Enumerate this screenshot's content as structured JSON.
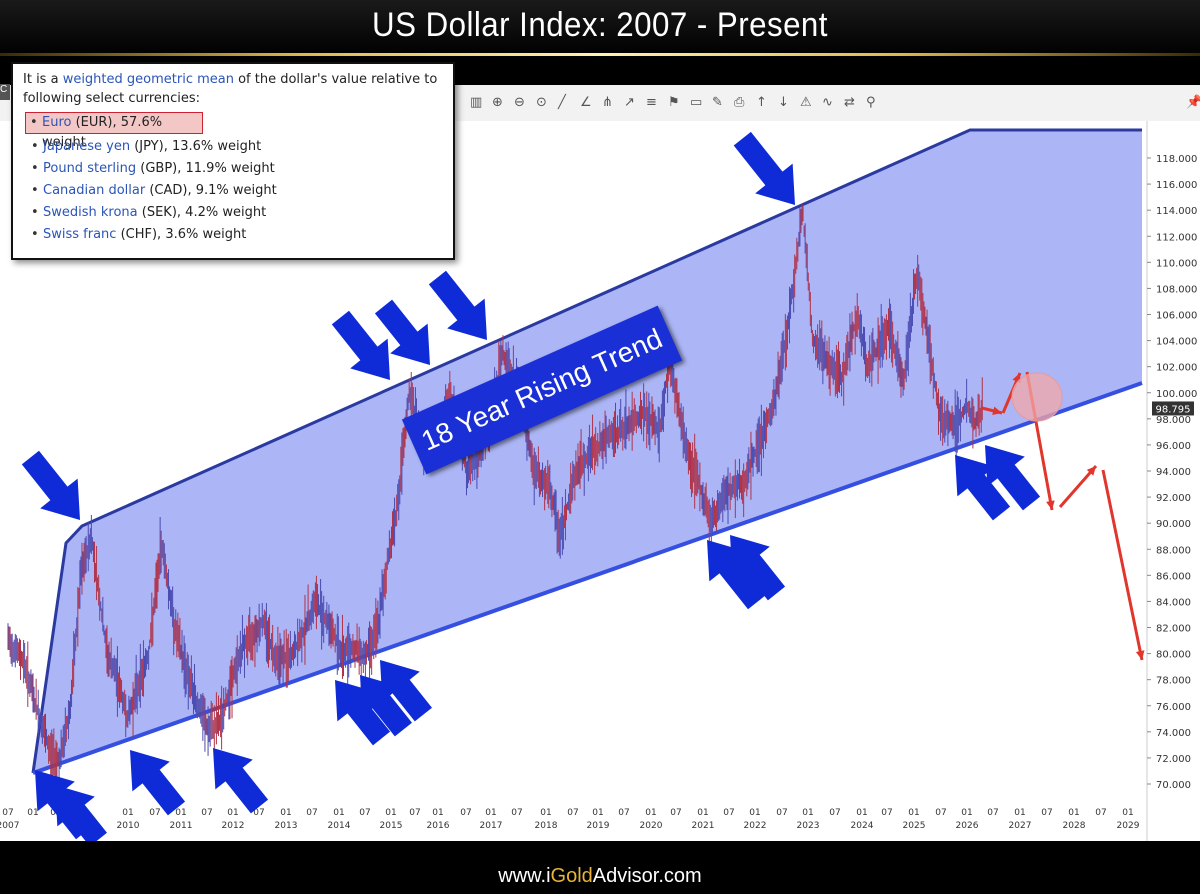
{
  "header": {
    "title": "US Dollar Index: 2007 - Present"
  },
  "info_box": {
    "intro_pre": "It is a ",
    "intro_link": "weighted geometric mean",
    "intro_post": " of the dollar's value relative to following select currencies:",
    "currencies": [
      {
        "name": "Euro",
        "rest": " (EUR), 57.6% weight",
        "highlight": true
      },
      {
        "name": "Japanese yen",
        "rest": " (JPY), 13.6% weight",
        "highlight": false
      },
      {
        "name": "Pound sterling",
        "rest": " (GBP), 11.9% weight",
        "highlight": false
      },
      {
        "name": "Canadian dollar",
        "rest": " (CAD), 9.1% weight",
        "highlight": false
      },
      {
        "name": "Swedish krona",
        "rest": " (SEK), 4.2% weight",
        "highlight": false
      },
      {
        "name": "Swiss franc",
        "rest": " (CHF), 3.6% weight",
        "highlight": false
      }
    ]
  },
  "trend_label": "18 Year Rising Trend",
  "price_marker": "98.795",
  "footer": {
    "url_pre": "www.i",
    "url_gold": "Gold",
    "url_post": "Advisor.com"
  },
  "toolbar": {
    "tab_letter": "C",
    "icons": [
      "bar-chart-icon",
      "zoom-in-icon",
      "zoom-out-icon",
      "zoom-reset-icon",
      "line-tool-icon",
      "trend-tool-icon",
      "fork-tool-icon",
      "arrow-tool-icon",
      "fib-tool-icon",
      "flag-tool-icon",
      "ruler-tool-icon",
      "eraser-tool-icon",
      "print-icon",
      "buy-icon",
      "sell-icon",
      "alert-icon",
      "indicator-icon",
      "compare-icon",
      "pin-icon"
    ]
  },
  "colors": {
    "channel_fill": "#a8b2f5",
    "channel_line": "#2a3aa0",
    "arrow_blue": "#0f2bd8",
    "arrow_red": "#e0362c",
    "label_box": "#1a2fd6",
    "candle_red": "#b0334a",
    "candle_blue": "#4a4ab0"
  },
  "chart_data": {
    "type": "line",
    "title": "US Dollar Index: 2007 - Present",
    "ylim": [
      69,
      120
    ],
    "y_ticks": [
      "70.000",
      "72.000",
      "74.000",
      "76.000",
      "78.000",
      "80.000",
      "82.000",
      "84.000",
      "86.000",
      "88.000",
      "90.000",
      "92.000",
      "94.000",
      "96.000",
      "98.000",
      "100.000",
      "102.000",
      "104.000",
      "106.000",
      "108.000",
      "110.000",
      "112.000",
      "114.000",
      "116.000",
      "118.000"
    ],
    "x_ticks": [
      {
        "top": "07",
        "bottom": "2007"
      },
      {
        "top": "01",
        "bottom": ""
      },
      {
        "top": "07",
        "bottom": ""
      },
      {
        "top": "01",
        "bottom": "2010"
      },
      {
        "top": "07",
        "bottom": ""
      },
      {
        "top": "01",
        "bottom": "2011"
      },
      {
        "top": "07",
        "bottom": ""
      },
      {
        "top": "01",
        "bottom": "2012"
      },
      {
        "top": "07",
        "bottom": ""
      },
      {
        "top": "01",
        "bottom": "2013"
      },
      {
        "top": "07",
        "bottom": ""
      },
      {
        "top": "01",
        "bottom": "2014"
      },
      {
        "top": "07",
        "bottom": ""
      },
      {
        "top": "01",
        "bottom": "2015"
      },
      {
        "top": "07",
        "bottom": ""
      },
      {
        "top": "01",
        "bottom": "2016"
      },
      {
        "top": "07",
        "bottom": ""
      },
      {
        "top": "01",
        "bottom": "2017"
      },
      {
        "top": "07",
        "bottom": ""
      },
      {
        "top": "01",
        "bottom": "2018"
      },
      {
        "top": "07",
        "bottom": ""
      },
      {
        "top": "01",
        "bottom": "2019"
      },
      {
        "top": "07",
        "bottom": ""
      },
      {
        "top": "01",
        "bottom": "2020"
      },
      {
        "top": "07",
        "bottom": ""
      },
      {
        "top": "01",
        "bottom": "2021"
      },
      {
        "top": "07",
        "bottom": ""
      },
      {
        "top": "01",
        "bottom": "2022"
      },
      {
        "top": "07",
        "bottom": ""
      },
      {
        "top": "01",
        "bottom": "2023"
      },
      {
        "top": "07",
        "bottom": ""
      },
      {
        "top": "01",
        "bottom": "2024"
      },
      {
        "top": "07",
        "bottom": ""
      },
      {
        "top": "01",
        "bottom": "2025"
      },
      {
        "top": "07",
        "bottom": ""
      },
      {
        "top": "01",
        "bottom": "2026"
      },
      {
        "top": "07",
        "bottom": ""
      },
      {
        "top": "01",
        "bottom": "2027"
      },
      {
        "top": "07",
        "bottom": ""
      },
      {
        "top": "01",
        "bottom": "2028"
      },
      {
        "top": "07",
        "bottom": ""
      },
      {
        "top": "01",
        "bottom": "2029"
      }
    ],
    "series": [
      {
        "values": [
          [
            2007.5,
            81
          ],
          [
            2007.8,
            79.5
          ],
          [
            2008.0,
            76.5
          ],
          [
            2008.3,
            72.5
          ],
          [
            2008.5,
            71.8
          ],
          [
            2008.7,
            76
          ],
          [
            2008.9,
            86
          ],
          [
            2009.1,
            89
          ],
          [
            2009.2,
            86
          ],
          [
            2009.4,
            80
          ],
          [
            2009.6,
            78
          ],
          [
            2009.8,
            75
          ],
          [
            2009.95,
            77
          ],
          [
            2010.2,
            80
          ],
          [
            2010.45,
            88.5
          ],
          [
            2010.7,
            82
          ],
          [
            2010.9,
            79
          ],
          [
            2011.1,
            76.5
          ],
          [
            2011.35,
            74
          ],
          [
            2011.6,
            75
          ],
          [
            2011.8,
            78
          ],
          [
            2012.0,
            80.5
          ],
          [
            2012.4,
            82.5
          ],
          [
            2012.6,
            80
          ],
          [
            2012.9,
            79.5
          ],
          [
            2013.1,
            81
          ],
          [
            2013.4,
            84
          ],
          [
            2013.7,
            82
          ],
          [
            2013.9,
            80
          ],
          [
            2014.1,
            80.5
          ],
          [
            2014.35,
            79.8
          ],
          [
            2014.6,
            82
          ],
          [
            2014.8,
            87.5
          ],
          [
            2015.0,
            92
          ],
          [
            2015.2,
            100
          ],
          [
            2015.5,
            95.5
          ],
          [
            2015.8,
            98
          ],
          [
            2016.0,
            99.5
          ],
          [
            2016.3,
            94
          ],
          [
            2016.5,
            95
          ],
          [
            2016.8,
            98.5
          ],
          [
            2017.0,
            103.2
          ],
          [
            2017.3,
            100
          ],
          [
            2017.6,
            94
          ],
          [
            2017.9,
            92.5
          ],
          [
            2018.1,
            89
          ],
          [
            2018.4,
            94
          ],
          [
            2018.7,
            95.5
          ],
          [
            2019.0,
            96.5
          ],
          [
            2019.4,
            97.5
          ],
          [
            2019.7,
            98.5
          ],
          [
            2020.0,
            97
          ],
          [
            2020.2,
            102.5
          ],
          [
            2020.5,
            96
          ],
          [
            2020.8,
            92.5
          ],
          [
            2021.0,
            90
          ],
          [
            2021.3,
            92.5
          ],
          [
            2021.6,
            93
          ],
          [
            2021.9,
            96
          ],
          [
            2022.2,
            99
          ],
          [
            2022.5,
            106
          ],
          [
            2022.75,
            114
          ],
          [
            2022.95,
            104
          ],
          [
            2023.2,
            102.5
          ],
          [
            2023.5,
            101
          ],
          [
            2023.8,
            106
          ],
          [
            2024.0,
            102
          ],
          [
            2024.4,
            105
          ],
          [
            2024.7,
            101
          ],
          [
            2024.95,
            109.5
          ],
          [
            2025.2,
            103
          ],
          [
            2025.4,
            98
          ],
          [
            2025.7,
            97.5
          ],
          [
            2025.9,
            99
          ],
          [
            2026.05,
            97.5
          ],
          [
            2026.2,
            98.8
          ]
        ]
      }
    ]
  }
}
